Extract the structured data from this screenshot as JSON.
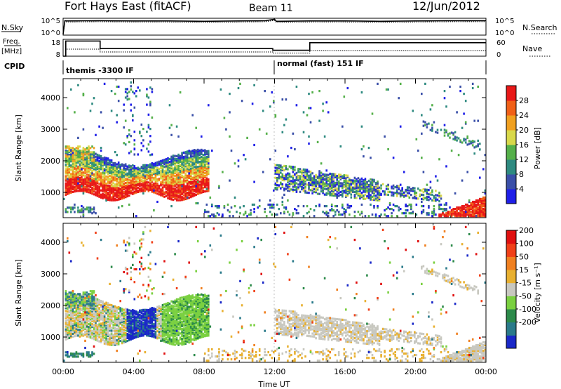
{
  "header": {
    "station": "Fort Hays East (fitACF)",
    "beam": "Beam 11",
    "date": "12/Jun/2012"
  },
  "top_panels": {
    "nsky_label": "N.Sky",
    "nsky_ticks": [
      "10^5",
      "10^0"
    ],
    "nsearch_label": "N.Search",
    "nsearch_ticks": [
      "10^5",
      "10^0"
    ],
    "freq_label": "Freq.",
    "freq_unit": "[MHz]",
    "freq_ticks": [
      "18",
      "8"
    ],
    "nave_label": "Nave",
    "nave_ticks": [
      "60",
      "0"
    ],
    "cpid_label": "CPID",
    "cpid_segments": [
      {
        "start": 0,
        "end": 12,
        "label": "themis -3300 IF"
      },
      {
        "start": 12,
        "end": 24,
        "label": "normal (fast) 151 IF"
      }
    ]
  },
  "chart_data": [
    {
      "type": "line",
      "name": "N.Sky / N.Search",
      "x": [
        0,
        0.1,
        0.2,
        2,
        4,
        6,
        8,
        10,
        11.5,
        12,
        12.1,
        14,
        16,
        18,
        20,
        22,
        24
      ],
      "y_log": [
        0.3,
        4.3,
        4.2,
        4.3,
        4.2,
        4.2,
        4.1,
        4.2,
        4.3,
        4.7,
        4.1,
        4.2,
        4.2,
        4.1,
        4.2,
        4.3,
        4.3
      ],
      "xlim": [
        0,
        24
      ]
    },
    {
      "type": "line",
      "name": "Freq / Nave",
      "freq_x": [
        0,
        0.15,
        0.15,
        2.1,
        2.1,
        11.9,
        11.9,
        14,
        14,
        24
      ],
      "freq_y": [
        8,
        8,
        17,
        17,
        12.5,
        12.5,
        11.5,
        11.5,
        16,
        16
      ],
      "nave_x": [
        0,
        0.15,
        0.15,
        2.1,
        2.1,
        11.9,
        11.9,
        14,
        14,
        24
      ],
      "nave_y": [
        0,
        0,
        25,
        25,
        15,
        15,
        11,
        11,
        20,
        20
      ],
      "freq_ylim": [
        8,
        18
      ],
      "nave_ylim": [
        0,
        60
      ],
      "xlim": [
        0,
        24
      ]
    },
    {
      "type": "heatmap",
      "name": "Power",
      "ylabel": "Slant Range [km]",
      "yticks": [
        1000,
        2000,
        3000,
        4000
      ],
      "ylim": [
        200,
        4600
      ],
      "xlim": [
        0,
        24
      ],
      "colorbar_label": "Power [dB]",
      "colorbar_ticks": [
        "4",
        "8",
        "12",
        "16",
        "20",
        "24",
        "28"
      ],
      "colorbar_colors": [
        "#1f1fe8",
        "#3a4fa8",
        "#2e8a80",
        "#55b04a",
        "#d8d84a",
        "#f0a020",
        "#f06018",
        "#e81818"
      ]
    },
    {
      "type": "heatmap",
      "name": "Velocity",
      "ylabel": "Slant Range [km]",
      "yticks": [
        1000,
        2000,
        3000,
        4000
      ],
      "ylim": [
        200,
        4600
      ],
      "xlim": [
        0,
        24
      ],
      "xlabel": "Time UT",
      "xticks": [
        "00:00",
        "04:00",
        "08:00",
        "12:00",
        "16:00",
        "20:00",
        "00:00"
      ],
      "colorbar_label": "Velocity [m s⁻¹]",
      "colorbar_ticks": [
        "200",
        "100",
        "50",
        "15",
        "-15",
        "-50",
        "-100",
        "-200"
      ],
      "colorbar_colors": [
        "#1a28c8",
        "#2a7a8a",
        "#2c8a4a",
        "#7ad040",
        "#c8c8c0",
        "#e8b030",
        "#f08020",
        "#f04018",
        "#e01010"
      ]
    }
  ]
}
